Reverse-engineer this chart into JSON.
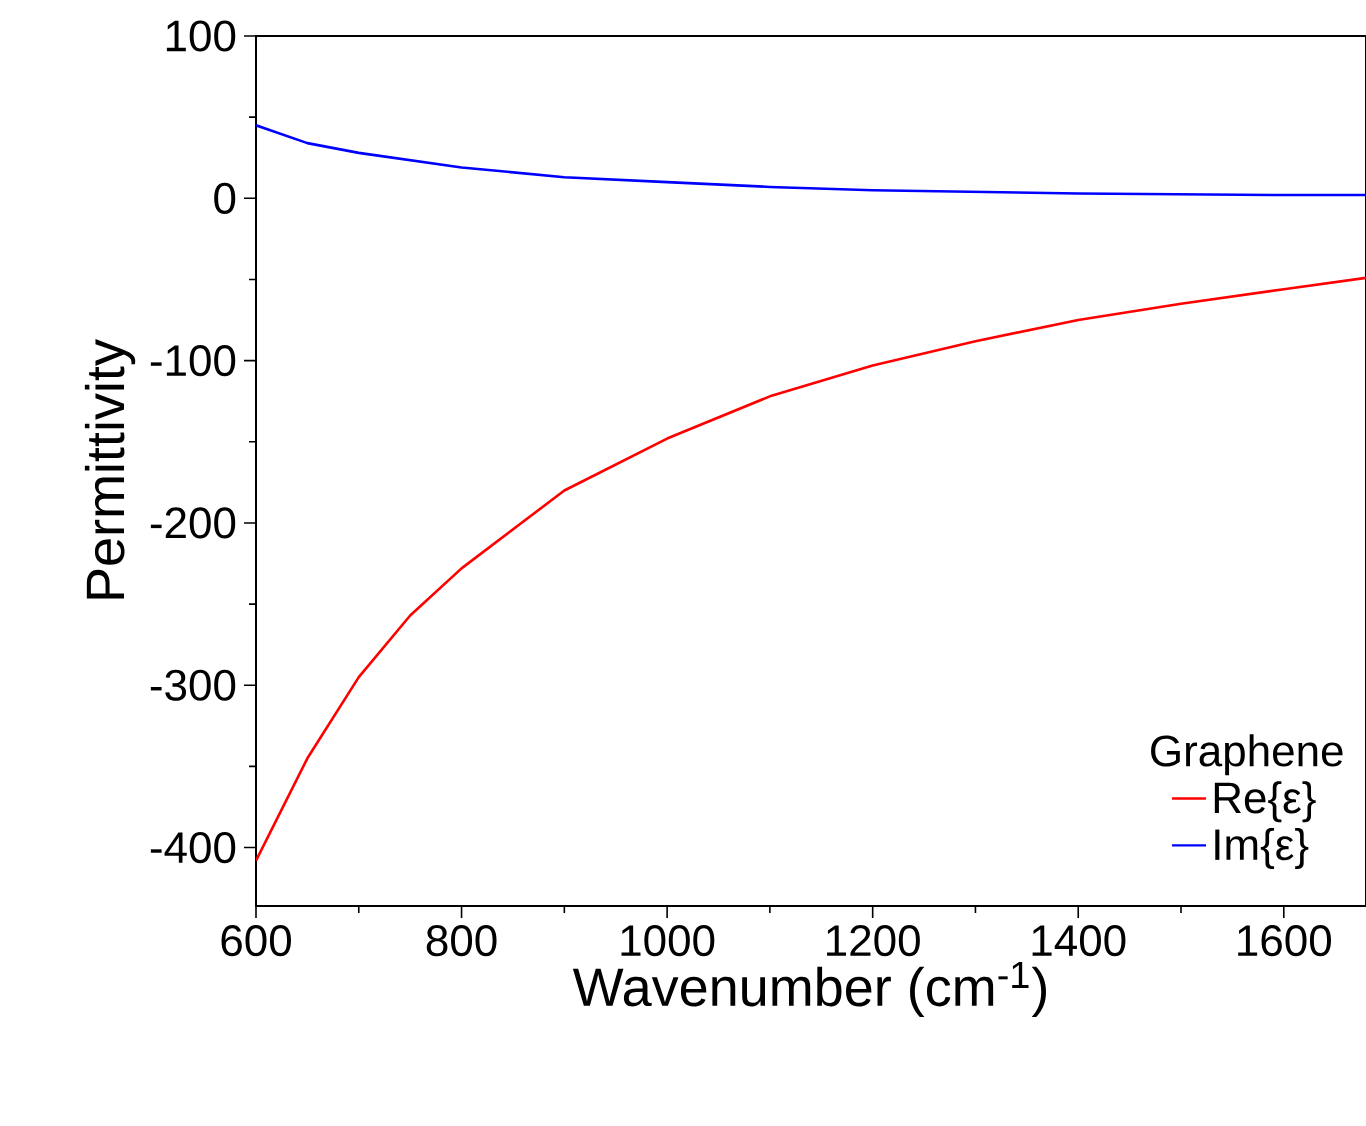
{
  "chart_data": {
    "type": "line",
    "xlabel": "Wavenumber (cm$^{-1}$)",
    "ylabel": "Permittivity",
    "legend_title": "Graphene",
    "xlim": [
      600,
      1680
    ],
    "ylim": [
      -436,
      100
    ],
    "xticks": [
      600,
      800,
      1000,
      1200,
      1400,
      1600
    ],
    "yticks": [
      -400,
      -300,
      -200,
      -100,
      0,
      100
    ],
    "legend": "bottom right",
    "grid": false,
    "marker": "none",
    "line_style": "solid",
    "series": [
      {
        "name": "Re{ε}",
        "color": "#ff0000",
        "x": [
          600,
          650,
          700,
          750,
          800,
          900,
          1000,
          1100,
          1200,
          1300,
          1400,
          1500,
          1600,
          1680
        ],
        "values": [
          -408,
          -345,
          -295,
          -257,
          -228,
          -180,
          -148,
          -122,
          -103,
          -88,
          -75,
          -65,
          -56,
          -49
        ]
      },
      {
        "name": "Im{ε}",
        "color": "#0000ff",
        "x": [
          600,
          650,
          700,
          800,
          900,
          1000,
          1100,
          1200,
          1400,
          1600,
          1680
        ],
        "values": [
          45,
          34,
          28,
          19,
          13,
          10,
          7,
          5,
          3,
          2,
          2
        ]
      }
    ]
  }
}
